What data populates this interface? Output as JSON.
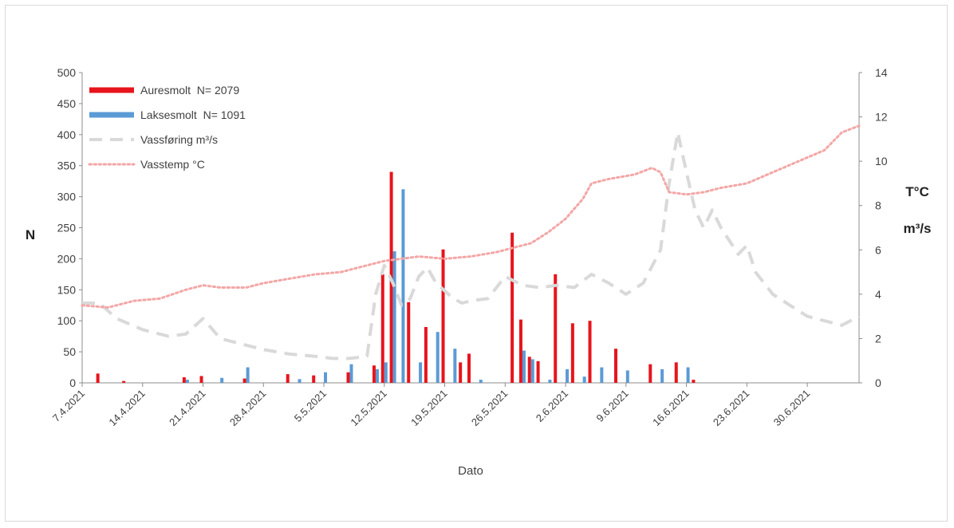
{
  "chart_data": {
    "type": "bar",
    "xlabel": "Dato",
    "ylabel_left": "N",
    "ylabel_right_1": "T°C",
    "ylabel_right_2": "m³/s",
    "ylim_left": [
      0,
      500
    ],
    "ylim_right": [
      0,
      14
    ],
    "yticks_left": [
      "0",
      "50",
      "100",
      "150",
      "200",
      "250",
      "300",
      "350",
      "400",
      "450",
      "500"
    ],
    "yticks_right": [
      "0",
      "2",
      "4",
      "6",
      "8",
      "10",
      "12",
      "14"
    ],
    "xticks": [
      "7.4.2021",
      "14.4.2021",
      "21.4.2021",
      "28.4.2021",
      "5.5.2021",
      "12.5.2021",
      "19.5.2021",
      "26.5.2021",
      "2.6.2021",
      "9.6.2021",
      "16.6.2021",
      "23.6.2021",
      "30.6.2021"
    ],
    "x_start": "7.4.2021",
    "x_end": "6.7.2021",
    "legend_position": "top-left",
    "grid": false,
    "series": [
      {
        "name": "Auresmolt  N= 2079",
        "kind": "bar",
        "color": "#e8141c",
        "points": [
          [
            "9.4.2021",
            15
          ],
          [
            "12.4.2021",
            3
          ],
          [
            "19.4.2021",
            9
          ],
          [
            "21.4.2021",
            11
          ],
          [
            "26.4.2021",
            7
          ],
          [
            "1.5.2021",
            14
          ],
          [
            "4.5.2021",
            12
          ],
          [
            "8.5.2021",
            17
          ],
          [
            "11.5.2021",
            28
          ],
          [
            "12.5.2021",
            175
          ],
          [
            "13.5.2021",
            340
          ],
          [
            "15.5.2021",
            130
          ],
          [
            "17.5.2021",
            90
          ],
          [
            "19.5.2021",
            215
          ],
          [
            "21.5.2021",
            33
          ],
          [
            "22.5.2021",
            47
          ],
          [
            "27.5.2021",
            242
          ],
          [
            "28.5.2021",
            102
          ],
          [
            "29.5.2021",
            42
          ],
          [
            "30.5.2021",
            35
          ],
          [
            "1.6.2021",
            175
          ],
          [
            "3.6.2021",
            96
          ],
          [
            "5.6.2021",
            100
          ],
          [
            "8.6.2021",
            55
          ],
          [
            "12.6.2021",
            30
          ],
          [
            "15.6.2021",
            33
          ],
          [
            "17.6.2021",
            5
          ]
        ]
      },
      {
        "name": "Laksesmolt  N= 1091",
        "kind": "bar",
        "color": "#5b9bd5",
        "points": [
          [
            "19.4.2021",
            5
          ],
          [
            "23.4.2021",
            8
          ],
          [
            "26.4.2021",
            25
          ],
          [
            "2.5.2021",
            6
          ],
          [
            "5.5.2021",
            17
          ],
          [
            "8.5.2021",
            30
          ],
          [
            "11.5.2021",
            22
          ],
          [
            "12.5.2021",
            33
          ],
          [
            "13.5.2021",
            212
          ],
          [
            "14.5.2021",
            312
          ],
          [
            "16.5.2021",
            33
          ],
          [
            "18.5.2021",
            82
          ],
          [
            "20.5.2021",
            55
          ],
          [
            "23.5.2021",
            5
          ],
          [
            "28.5.2021",
            52
          ],
          [
            "29.5.2021",
            38
          ],
          [
            "31.5.2021",
            5
          ],
          [
            "2.6.2021",
            22
          ],
          [
            "4.6.2021",
            10
          ],
          [
            "6.6.2021",
            25
          ],
          [
            "9.6.2021",
            20
          ],
          [
            "13.6.2021",
            22
          ],
          [
            "16.6.2021",
            25
          ]
        ]
      },
      {
        "name": "Vassføring m³/s",
        "kind": "line",
        "style": "dashed",
        "color": "#d9d9d9",
        "points": [
          [
            "7.4.2021",
            3.6
          ],
          [
            "9.4.2021",
            3.6
          ],
          [
            "11.4.2021",
            2.9
          ],
          [
            "14.4.2021",
            2.4
          ],
          [
            "17.4.2021",
            2.1
          ],
          [
            "19.4.2021",
            2.2
          ],
          [
            "21.4.2021",
            2.9
          ],
          [
            "23.4.2021",
            2.0
          ],
          [
            "26.4.2021",
            1.7
          ],
          [
            "28.4.2021",
            1.5
          ],
          [
            "1.5.2021",
            1.3
          ],
          [
            "4.5.2021",
            1.2
          ],
          [
            "6.5.2021",
            1.1
          ],
          [
            "8.5.2021",
            1.1
          ],
          [
            "10.5.2021",
            1.2
          ],
          [
            "11.5.2021",
            4.0
          ],
          [
            "12.5.2021",
            5.3
          ],
          [
            "13.5.2021",
            4.5
          ],
          [
            "14.5.2021",
            3.5
          ],
          [
            "15.5.2021",
            3.8
          ],
          [
            "16.5.2021",
            4.8
          ],
          [
            "17.5.2021",
            5.2
          ],
          [
            "18.5.2021",
            4.5
          ],
          [
            "20.5.2021",
            3.8
          ],
          [
            "21.5.2021",
            3.6
          ],
          [
            "22.5.2021",
            3.7
          ],
          [
            "24.5.2021",
            3.8
          ],
          [
            "26.5.2021",
            4.8
          ],
          [
            "28.5.2021",
            4.4
          ],
          [
            "30.5.2021",
            4.3
          ],
          [
            "1.6.2021",
            4.4
          ],
          [
            "3.6.2021",
            4.3
          ],
          [
            "5.6.2021",
            4.9
          ],
          [
            "7.6.2021",
            4.5
          ],
          [
            "9.6.2021",
            4.0
          ],
          [
            "11.6.2021",
            4.5
          ],
          [
            "13.6.2021",
            6.0
          ],
          [
            "14.6.2021",
            9.0
          ],
          [
            "15.6.2021",
            11.3
          ],
          [
            "16.6.2021",
            9.5
          ],
          [
            "17.6.2021",
            7.8
          ],
          [
            "18.6.2021",
            7.0
          ],
          [
            "19.6.2021",
            7.8
          ],
          [
            "20.6.2021",
            7.0
          ],
          [
            "22.6.2021",
            5.8
          ],
          [
            "23.6.2021",
            6.2
          ],
          [
            "24.6.2021",
            5.0
          ],
          [
            "26.6.2021",
            4.0
          ],
          [
            "28.6.2021",
            3.5
          ],
          [
            "30.6.2021",
            3.0
          ],
          [
            "2.7.2021",
            2.8
          ],
          [
            "4.7.2021",
            2.6
          ],
          [
            "6.7.2021",
            3.0
          ]
        ]
      },
      {
        "name": "Vasstemp °C",
        "kind": "line",
        "style": "dotted",
        "color": "#f4a6a6",
        "points": [
          [
            "7.4.2021",
            3.5
          ],
          [
            "10.4.2021",
            3.4
          ],
          [
            "13.4.2021",
            3.7
          ],
          [
            "16.4.2021",
            3.8
          ],
          [
            "19.4.2021",
            4.2
          ],
          [
            "21.4.2021",
            4.4
          ],
          [
            "23.4.2021",
            4.3
          ],
          [
            "26.4.2021",
            4.3
          ],
          [
            "28.4.2021",
            4.5
          ],
          [
            "1.5.2021",
            4.7
          ],
          [
            "4.5.2021",
            4.9
          ],
          [
            "7.5.2021",
            5.0
          ],
          [
            "10.5.2021",
            5.3
          ],
          [
            "12.5.2021",
            5.5
          ],
          [
            "14.5.2021",
            5.6
          ],
          [
            "16.5.2021",
            5.7
          ],
          [
            "19.5.2021",
            5.6
          ],
          [
            "22.5.2021",
            5.7
          ],
          [
            "25.5.2021",
            5.9
          ],
          [
            "27.5.2021",
            6.1
          ],
          [
            "29.5.2021",
            6.3
          ],
          [
            "31.5.2021",
            6.8
          ],
          [
            "2.6.2021",
            7.4
          ],
          [
            "4.6.2021",
            8.3
          ],
          [
            "5.6.2021",
            9.0
          ],
          [
            "7.6.2021",
            9.2
          ],
          [
            "10.6.2021",
            9.4
          ],
          [
            "12.6.2021",
            9.7
          ],
          [
            "13.6.2021",
            9.5
          ],
          [
            "14.6.2021",
            8.6
          ],
          [
            "16.6.2021",
            8.5
          ],
          [
            "18.6.2021",
            8.6
          ],
          [
            "20.6.2021",
            8.8
          ],
          [
            "23.6.2021",
            9.0
          ],
          [
            "26.6.2021",
            9.5
          ],
          [
            "29.6.2021",
            10.0
          ],
          [
            "2.7.2021",
            10.5
          ],
          [
            "4.7.2021",
            11.3
          ],
          [
            "6.7.2021",
            11.6
          ]
        ]
      }
    ]
  }
}
